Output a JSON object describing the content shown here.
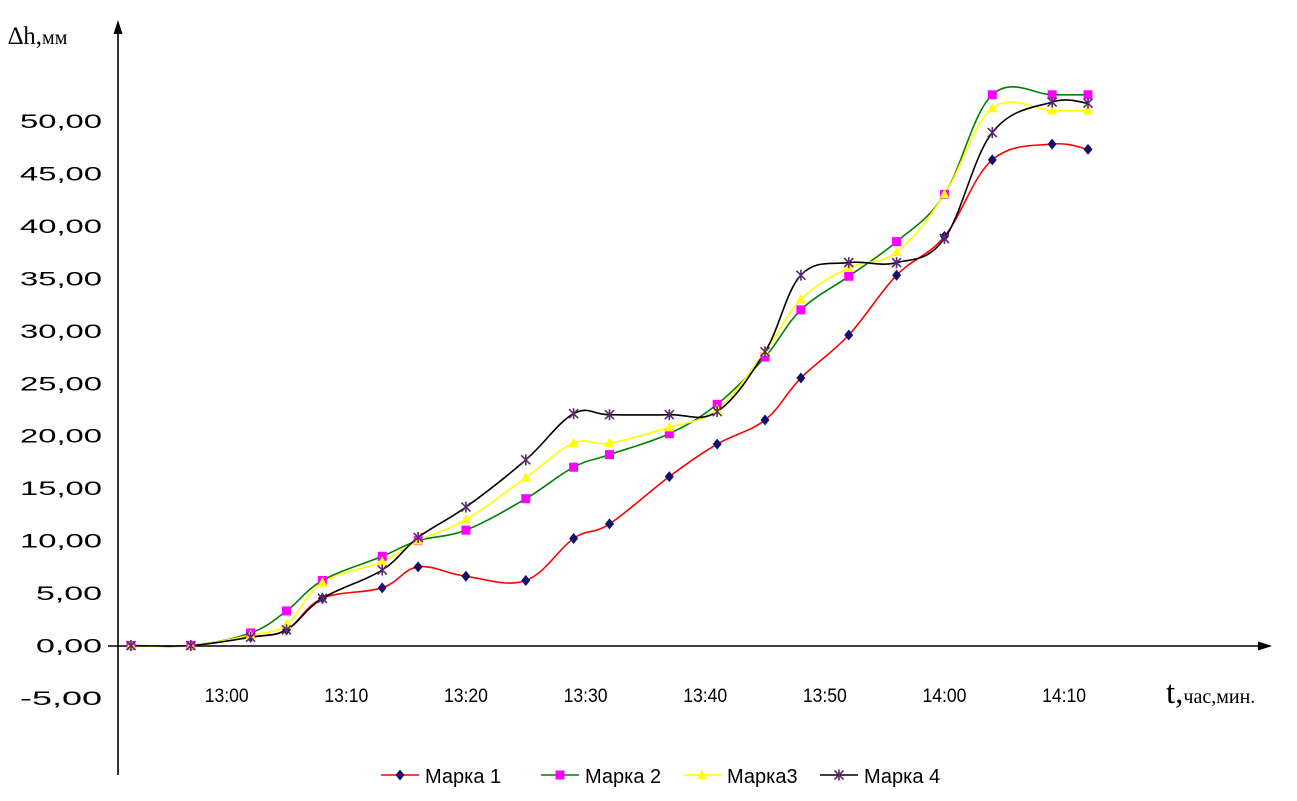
{
  "chart_data": {
    "type": "line",
    "ylabel_main": "∆h,",
    "ylabel_unit": "мм",
    "xlabel_main": "t,",
    "xlabel_unit": "час,мин.",
    "ylim": [
      -5,
      55
    ],
    "y_ticks": [
      "-5,00",
      "0,00",
      "5,00",
      "10,00",
      "15,00",
      "20,00",
      "25,00",
      "30,00",
      "35,00",
      "40,00",
      "45,00",
      "50,00"
    ],
    "x_ticks": [
      "13:00",
      "13:10",
      "13:20",
      "13:30",
      "13:40",
      "13:50",
      "14:00",
      "14:10"
    ],
    "x_tick_minutes": [
      780,
      790,
      800,
      810,
      820,
      830,
      840,
      850
    ],
    "xlim_minutes": [
      772,
      875
    ],
    "legend_position": "bottom",
    "x": [
      "12:52",
      "12:57",
      "13:02",
      "13:05",
      "13:08",
      "13:13",
      "13:16",
      "13:20",
      "13:25",
      "13:29",
      "13:32",
      "13:37",
      "13:41",
      "13:45",
      "13:48",
      "13:52",
      "13:56",
      "14:00",
      "14:04",
      "14:09",
      "14:12"
    ],
    "x_minutes": [
      772,
      777,
      782,
      785,
      788,
      793,
      796,
      800,
      805,
      809,
      812,
      817,
      821,
      825,
      828,
      832,
      836,
      840,
      844,
      849,
      852
    ],
    "series": [
      {
        "name": "Марка 1",
        "color": "#ff0000",
        "marker_color": "#10106e",
        "marker": "diamond",
        "values": [
          0,
          0,
          0.8,
          1.5,
          4.5,
          5.5,
          7.5,
          6.6,
          6.2,
          10.2,
          11.6,
          16.1,
          19.2,
          21.5,
          25.5,
          29.6,
          35.3,
          39.0,
          46.3,
          47.8,
          47.3
        ]
      },
      {
        "name": "Марка 2",
        "color": "#008000",
        "marker_color": "#ff00ff",
        "marker": "square",
        "values": [
          0,
          0,
          1.2,
          3.3,
          6.2,
          8.5,
          10.0,
          11.0,
          14.0,
          17.0,
          18.2,
          20.2,
          23.0,
          27.5,
          32.0,
          35.2,
          38.5,
          43.0,
          52.5,
          52.5,
          52.5
        ]
      },
      {
        "name": "Марка3",
        "color": "#ffff00",
        "marker_color": "#ffff00",
        "marker": "triangle",
        "values": [
          0,
          0,
          1.0,
          2.0,
          6.0,
          8.0,
          10.0,
          12.0,
          16.0,
          19.3,
          19.3,
          20.8,
          22.5,
          28.0,
          33.0,
          36.0,
          37.5,
          43.0,
          51.2,
          51.0,
          51.0
        ]
      },
      {
        "name": "Марка 4",
        "color": "#000000",
        "marker_color": "#5b2a6e",
        "marker": "star",
        "values": [
          0,
          0,
          0.8,
          1.5,
          4.5,
          7.2,
          10.3,
          13.2,
          17.7,
          22.1,
          22.0,
          22.0,
          22.3,
          28.0,
          35.3,
          36.5,
          36.5,
          38.8,
          48.9,
          51.8,
          51.7
        ]
      }
    ]
  }
}
